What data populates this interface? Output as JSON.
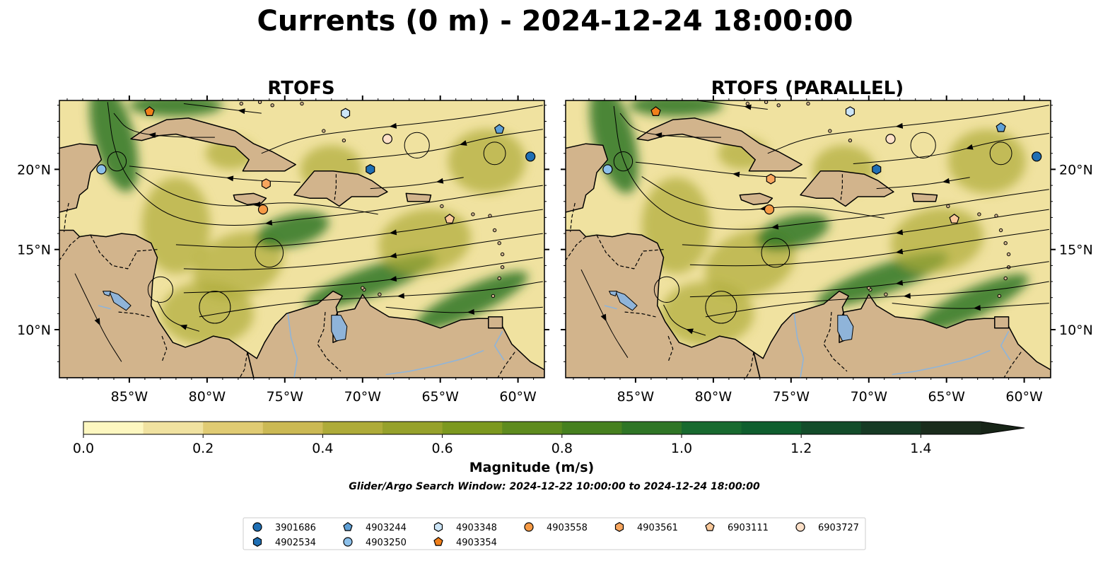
{
  "title": "Currents (0 m) - 2024-12-24 18:00:00",
  "panels": [
    {
      "title": "RTOFS"
    },
    {
      "title": "RTOFS (PARALLEL)"
    }
  ],
  "axes": {
    "lon_ticks": [
      "85°W",
      "80°W",
      "75°W",
      "70°W",
      "65°W",
      "60°W"
    ],
    "lat_ticks": [
      "10°N",
      "15°N",
      "20°N"
    ]
  },
  "map_extent": {
    "lon_min": -89.5,
    "lon_max": -58.3,
    "lat_min": 7,
    "lat_max": 24.3
  },
  "colorbar": {
    "label": "Magnitude (m/s)",
    "ticks": [
      "0.0",
      "0.2",
      "0.4",
      "0.6",
      "0.8",
      "1.0",
      "1.2",
      "1.4"
    ],
    "min": 0.0,
    "max": 1.5,
    "step": 0.1,
    "extend": "max",
    "colors": [
      "#fdf7c0",
      "#f0e2a0",
      "#e0cb73",
      "#cbb954",
      "#aeab39",
      "#96a12b",
      "#7c981f",
      "#5e8b1e",
      "#46801f",
      "#2f7526",
      "#186a2f",
      "#0f5e2e",
      "#134c2a",
      "#163a24",
      "#1a2c1c"
    ],
    "extend_color": "#172417"
  },
  "colors": {
    "land": "#d2b48c",
    "lakes": "#8fb4d9",
    "ocean_low": "#f0e2a0",
    "ocean_mid": "#aeab39",
    "ocean_high": "#2f7526"
  },
  "search_window": "Glider/Argo Search Window: 2024-12-22 10:00:00 to 2024-12-24 18:00:00",
  "legend": {
    "placement": "bottom-center",
    "items": [
      {
        "id": "3901686",
        "marker": "circle",
        "color": "#1f6fb4"
      },
      {
        "id": "4902534",
        "marker": "hexagon",
        "color": "#1f6fb4"
      },
      {
        "id": "4903244",
        "marker": "pentagon",
        "color": "#5fa0d6"
      },
      {
        "id": "4903250",
        "marker": "circle",
        "color": "#8cc0ea"
      },
      {
        "id": "4903348",
        "marker": "hexagon",
        "color": "#cce5f7"
      },
      {
        "id": "4903354",
        "marker": "pentagon",
        "color": "#f07f1a"
      },
      {
        "id": "4903558",
        "marker": "circle",
        "color": "#f69a45"
      },
      {
        "id": "4903561",
        "marker": "hexagon",
        "color": "#f8a65e"
      },
      {
        "id": "6903111",
        "marker": "pentagon",
        "color": "#fbc99a"
      },
      {
        "id": "6903727",
        "marker": "circle",
        "color": "#fde0c8"
      }
    ]
  },
  "floats": [
    {
      "id": "3901686",
      "panel": 0,
      "lon": -59.2,
      "lat": 20.8
    },
    {
      "id": "4902534",
      "panel": 0,
      "lon": -69.5,
      "lat": 20.0
    },
    {
      "id": "4903244",
      "panel": 0,
      "lon": -61.2,
      "lat": 22.5
    },
    {
      "id": "4903250",
      "panel": 0,
      "lon": -86.8,
      "lat": 20.0
    },
    {
      "id": "4903348",
      "panel": 0,
      "lon": -71.1,
      "lat": 23.5
    },
    {
      "id": "4903354",
      "panel": 0,
      "lon": -83.7,
      "lat": 23.6
    },
    {
      "id": "4903558",
      "panel": 0,
      "lon": -76.4,
      "lat": 17.5
    },
    {
      "id": "4903561",
      "panel": 0,
      "lon": -76.2,
      "lat": 19.1
    },
    {
      "id": "6903111",
      "panel": 0,
      "lon": -64.4,
      "lat": 16.9
    },
    {
      "id": "6903727",
      "panel": 0,
      "lon": -68.4,
      "lat": 21.9
    },
    {
      "id": "3901686",
      "panel": 1,
      "lon": -59.2,
      "lat": 20.8
    },
    {
      "id": "4902534",
      "panel": 1,
      "lon": -69.5,
      "lat": 20.0
    },
    {
      "id": "4903244",
      "panel": 1,
      "lon": -61.5,
      "lat": 22.6
    },
    {
      "id": "4903250",
      "panel": 1,
      "lon": -86.8,
      "lat": 20.0
    },
    {
      "id": "4903348",
      "panel": 1,
      "lon": -71.2,
      "lat": 23.6
    },
    {
      "id": "4903354",
      "panel": 1,
      "lon": -83.7,
      "lat": 23.6
    },
    {
      "id": "4903558",
      "panel": 1,
      "lon": -76.4,
      "lat": 17.5
    },
    {
      "id": "4903561",
      "panel": 1,
      "lon": -76.3,
      "lat": 19.4
    },
    {
      "id": "6903111",
      "panel": 1,
      "lon": -64.5,
      "lat": 16.9
    },
    {
      "id": "6903727",
      "panel": 1,
      "lon": -68.6,
      "lat": 21.9
    }
  ]
}
